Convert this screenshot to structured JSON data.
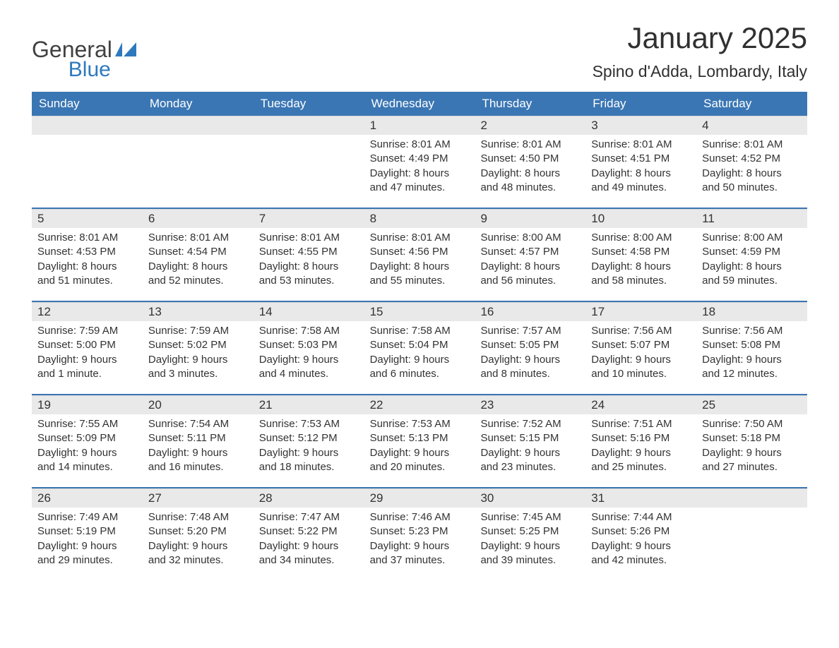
{
  "logo": {
    "word1": "General",
    "word2": "Blue",
    "icon_color": "#2e79bd",
    "text_gray": "#414141"
  },
  "title": "January 2025",
  "location": "Spino d'Adda, Lombardy, Italy",
  "colors": {
    "header_bg": "#3a76b3",
    "header_text": "#ffffff",
    "daynum_bg": "#e9e9e9",
    "week_border": "#3a76b3",
    "body_text": "#333333",
    "page_bg": "#ffffff"
  },
  "day_names": [
    "Sunday",
    "Monday",
    "Tuesday",
    "Wednesday",
    "Thursday",
    "Friday",
    "Saturday"
  ],
  "sunrise_label": "Sunrise:",
  "sunset_label": "Sunset:",
  "daylight_label": "Daylight:",
  "weeks": [
    [
      null,
      null,
      null,
      {
        "n": "1",
        "sunrise": "8:01 AM",
        "sunset": "4:49 PM",
        "daylight": "8 hours and 47 minutes."
      },
      {
        "n": "2",
        "sunrise": "8:01 AM",
        "sunset": "4:50 PM",
        "daylight": "8 hours and 48 minutes."
      },
      {
        "n": "3",
        "sunrise": "8:01 AM",
        "sunset": "4:51 PM",
        "daylight": "8 hours and 49 minutes."
      },
      {
        "n": "4",
        "sunrise": "8:01 AM",
        "sunset": "4:52 PM",
        "daylight": "8 hours and 50 minutes."
      }
    ],
    [
      {
        "n": "5",
        "sunrise": "8:01 AM",
        "sunset": "4:53 PM",
        "daylight": "8 hours and 51 minutes."
      },
      {
        "n": "6",
        "sunrise": "8:01 AM",
        "sunset": "4:54 PM",
        "daylight": "8 hours and 52 minutes."
      },
      {
        "n": "7",
        "sunrise": "8:01 AM",
        "sunset": "4:55 PM",
        "daylight": "8 hours and 53 minutes."
      },
      {
        "n": "8",
        "sunrise": "8:01 AM",
        "sunset": "4:56 PM",
        "daylight": "8 hours and 55 minutes."
      },
      {
        "n": "9",
        "sunrise": "8:00 AM",
        "sunset": "4:57 PM",
        "daylight": "8 hours and 56 minutes."
      },
      {
        "n": "10",
        "sunrise": "8:00 AM",
        "sunset": "4:58 PM",
        "daylight": "8 hours and 58 minutes."
      },
      {
        "n": "11",
        "sunrise": "8:00 AM",
        "sunset": "4:59 PM",
        "daylight": "8 hours and 59 minutes."
      }
    ],
    [
      {
        "n": "12",
        "sunrise": "7:59 AM",
        "sunset": "5:00 PM",
        "daylight": "9 hours and 1 minute."
      },
      {
        "n": "13",
        "sunrise": "7:59 AM",
        "sunset": "5:02 PM",
        "daylight": "9 hours and 3 minutes."
      },
      {
        "n": "14",
        "sunrise": "7:58 AM",
        "sunset": "5:03 PM",
        "daylight": "9 hours and 4 minutes."
      },
      {
        "n": "15",
        "sunrise": "7:58 AM",
        "sunset": "5:04 PM",
        "daylight": "9 hours and 6 minutes."
      },
      {
        "n": "16",
        "sunrise": "7:57 AM",
        "sunset": "5:05 PM",
        "daylight": "9 hours and 8 minutes."
      },
      {
        "n": "17",
        "sunrise": "7:56 AM",
        "sunset": "5:07 PM",
        "daylight": "9 hours and 10 minutes."
      },
      {
        "n": "18",
        "sunrise": "7:56 AM",
        "sunset": "5:08 PM",
        "daylight": "9 hours and 12 minutes."
      }
    ],
    [
      {
        "n": "19",
        "sunrise": "7:55 AM",
        "sunset": "5:09 PM",
        "daylight": "9 hours and 14 minutes."
      },
      {
        "n": "20",
        "sunrise": "7:54 AM",
        "sunset": "5:11 PM",
        "daylight": "9 hours and 16 minutes."
      },
      {
        "n": "21",
        "sunrise": "7:53 AM",
        "sunset": "5:12 PM",
        "daylight": "9 hours and 18 minutes."
      },
      {
        "n": "22",
        "sunrise": "7:53 AM",
        "sunset": "5:13 PM",
        "daylight": "9 hours and 20 minutes."
      },
      {
        "n": "23",
        "sunrise": "7:52 AM",
        "sunset": "5:15 PM",
        "daylight": "9 hours and 23 minutes."
      },
      {
        "n": "24",
        "sunrise": "7:51 AM",
        "sunset": "5:16 PM",
        "daylight": "9 hours and 25 minutes."
      },
      {
        "n": "25",
        "sunrise": "7:50 AM",
        "sunset": "5:18 PM",
        "daylight": "9 hours and 27 minutes."
      }
    ],
    [
      {
        "n": "26",
        "sunrise": "7:49 AM",
        "sunset": "5:19 PM",
        "daylight": "9 hours and 29 minutes."
      },
      {
        "n": "27",
        "sunrise": "7:48 AM",
        "sunset": "5:20 PM",
        "daylight": "9 hours and 32 minutes."
      },
      {
        "n": "28",
        "sunrise": "7:47 AM",
        "sunset": "5:22 PM",
        "daylight": "9 hours and 34 minutes."
      },
      {
        "n": "29",
        "sunrise": "7:46 AM",
        "sunset": "5:23 PM",
        "daylight": "9 hours and 37 minutes."
      },
      {
        "n": "30",
        "sunrise": "7:45 AM",
        "sunset": "5:25 PM",
        "daylight": "9 hours and 39 minutes."
      },
      {
        "n": "31",
        "sunrise": "7:44 AM",
        "sunset": "5:26 PM",
        "daylight": "9 hours and 42 minutes."
      },
      null
    ]
  ]
}
